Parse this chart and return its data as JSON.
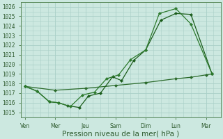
{
  "xlabel": "Pression niveau de la mer( hPa )",
  "bg_color": "#cce8e0",
  "grid_color": "#aad0c8",
  "line_color1": "#1a5c1a",
  "line_color2": "#2d7a2d",
  "line_color3": "#2a6a2a",
  "ylim": [
    1014.5,
    1026.5
  ],
  "yticks": [
    1015,
    1016,
    1017,
    1018,
    1019,
    1020,
    1021,
    1022,
    1023,
    1024,
    1025,
    1026
  ],
  "x_labels": [
    "Ven",
    "Mer",
    "Jeu",
    "Sam",
    "Dim",
    "Lun",
    "Mar"
  ],
  "x_tick_pos": [
    0,
    1,
    2,
    3,
    4,
    5,
    6
  ],
  "xlim": [
    -0.15,
    6.5
  ],
  "line1_x": [
    0.0,
    0.4,
    0.8,
    1.1,
    1.4,
    1.8,
    2.1,
    2.5,
    2.9,
    3.2,
    3.6,
    4.0,
    4.5,
    5.0,
    5.5,
    6.2
  ],
  "line1_y": [
    1017.7,
    1017.2,
    1016.1,
    1016.0,
    1015.7,
    1015.5,
    1016.7,
    1017.0,
    1018.7,
    1018.3,
    1020.4,
    1021.5,
    1024.6,
    1025.3,
    1025.2,
    1019.0
  ],
  "line2_x": [
    0.0,
    0.4,
    0.8,
    1.1,
    1.5,
    1.9,
    2.3,
    2.7,
    3.1,
    3.5,
    4.0,
    4.45,
    5.0,
    5.5,
    6.2
  ],
  "line2_y": [
    1017.7,
    1017.2,
    1016.1,
    1016.0,
    1015.6,
    1016.8,
    1017.1,
    1018.5,
    1018.9,
    1020.5,
    1021.5,
    1025.3,
    1025.8,
    1024.2,
    1019.0
  ],
  "line3_x": [
    0.0,
    1.0,
    2.0,
    3.0,
    4.0,
    5.0,
    5.5,
    6.0,
    6.2
  ],
  "line3_y": [
    1017.7,
    1017.3,
    1017.5,
    1017.8,
    1018.1,
    1018.5,
    1018.65,
    1018.9,
    1019.0
  ],
  "marker": "D",
  "marker_size": 2.2,
  "linewidth": 0.9,
  "tick_fontsize": 5.5,
  "xlabel_fontsize": 7.5,
  "tick_color": "#2d5a2d",
  "spine_color": "#5a8a5a"
}
